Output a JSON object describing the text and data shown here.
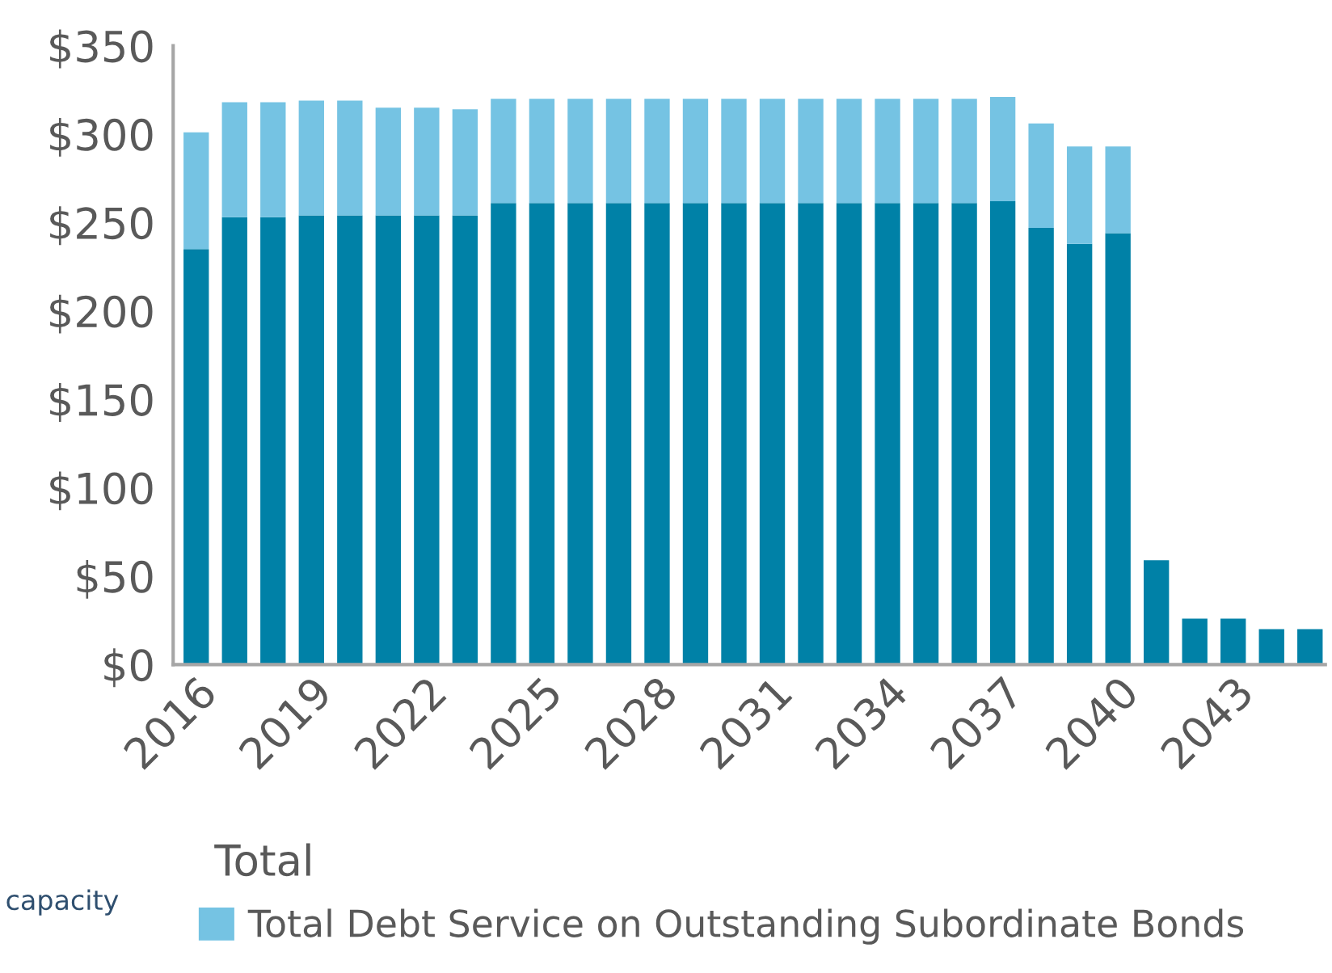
{
  "chart_data": {
    "type": "bar",
    "stacked": true,
    "categories": [
      "2016",
      null,
      null,
      "2019",
      null,
      null,
      "2022",
      null,
      null,
      "2025",
      null,
      null,
      "2028",
      null,
      null,
      "2031",
      null,
      null,
      "2034",
      null,
      null,
      "2037",
      null,
      null,
      "2040",
      null,
      null,
      "2043",
      null,
      null
    ],
    "series": [
      {
        "color": "#0081a7",
        "values": [
          235,
          253,
          253,
          254,
          254,
          254,
          254,
          254,
          261,
          261,
          261,
          261,
          261,
          261,
          261,
          261,
          261,
          261,
          261,
          261,
          261,
          262,
          247,
          238,
          244,
          59,
          26,
          26,
          20,
          20
        ]
      },
      {
        "name": "Total Debt Service on Outstanding Subordinate Bonds",
        "color": "#75c3e3",
        "values": [
          66,
          65,
          65,
          65,
          65,
          61,
          61,
          60,
          59,
          59,
          59,
          59,
          59,
          59,
          59,
          59,
          59,
          59,
          59,
          59,
          59,
          59,
          59,
          55,
          49,
          0,
          0,
          0,
          0,
          0
        ]
      }
    ],
    "ylim": [
      0,
      350
    ],
    "yticks": [
      {
        "value": 0,
        "label": "$0"
      },
      {
        "value": 50,
        "label": "$50"
      },
      {
        "value": 100,
        "label": "$100"
      },
      {
        "value": 150,
        "label": "$150"
      },
      {
        "value": 200,
        "label": "$200"
      },
      {
        "value": 250,
        "label": "$250"
      },
      {
        "value": 300,
        "label": "$300"
      },
      {
        "value": 350,
        "label": "$350"
      }
    ],
    "grid": false,
    "legend": "bottom",
    "annotations": [
      "Total",
      "capacity"
    ]
  }
}
